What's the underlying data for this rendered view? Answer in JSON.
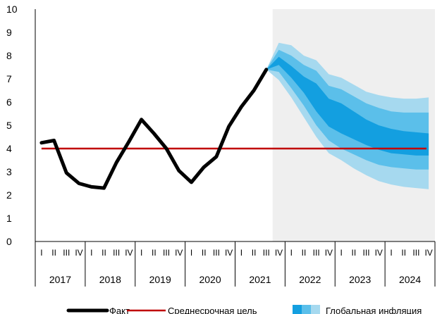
{
  "chart_data": {
    "type": "line",
    "title": "",
    "ylabel": "",
    "ylim": [
      0,
      10
    ],
    "yticks": [
      0,
      1,
      2,
      3,
      4,
      5,
      6,
      7,
      8,
      9,
      10
    ],
    "grid": false,
    "years": [
      "2017",
      "2018",
      "2019",
      "2020",
      "2021",
      "2022",
      "2023",
      "2024"
    ],
    "quarters": [
      "I",
      "II",
      "III",
      "IV"
    ],
    "forecast_shaded_from": "2021 IV",
    "series": [
      {
        "name": "Факт",
        "color": "#000000",
        "x": [
          "2017 I",
          "2017 II",
          "2017 III",
          "2017 IV",
          "2018 I",
          "2018 II",
          "2018 III",
          "2018 IV",
          "2019 I",
          "2019 II",
          "2019 III",
          "2019 IV",
          "2020 I",
          "2020 II",
          "2020 III",
          "2020 IV",
          "2021 I",
          "2021 II",
          "2021 III",
          "2021 IV"
        ],
        "values": [
          4.25,
          4.35,
          2.95,
          2.5,
          2.35,
          2.3,
          3.4,
          4.3,
          5.25,
          4.65,
          4.0,
          3.05,
          2.55,
          3.2,
          3.65,
          4.95,
          5.8,
          6.5,
          7.4,
          null
        ]
      },
      {
        "name": "Среднесрочная цель",
        "color": "#c00000",
        "x": [
          "2017 I",
          "2024 IV"
        ],
        "values": [
          4.0,
          4.0
        ]
      }
    ],
    "fan": {
      "name": "Глобальная инфляция",
      "colors": [
        "#a6d9ef",
        "#5bbfea",
        "#139fe0"
      ],
      "x": [
        "2021 III",
        "2021 IV",
        "2022 I",
        "2022 II",
        "2022 III",
        "2022 IV",
        "2023 I",
        "2023 II",
        "2023 III",
        "2023 IV",
        "2024 I",
        "2024 II",
        "2024 III",
        "2024 IV"
      ],
      "outer_upper": [
        7.4,
        8.55,
        8.45,
        8.0,
        7.8,
        7.2,
        7.05,
        6.75,
        6.45,
        6.3,
        6.2,
        6.15,
        6.15,
        6.2
      ],
      "middle_upper": [
        7.4,
        8.25,
        8.0,
        7.6,
        7.35,
        6.7,
        6.55,
        6.25,
        5.95,
        5.75,
        5.6,
        5.55,
        5.55,
        5.55
      ],
      "inner_upper": [
        7.4,
        7.95,
        7.55,
        7.1,
        6.8,
        6.15,
        5.95,
        5.6,
        5.25,
        5.0,
        4.85,
        4.75,
        4.7,
        4.65
      ],
      "inner_lower": [
        7.4,
        7.6,
        7.05,
        6.4,
        5.6,
        4.95,
        4.65,
        4.4,
        4.15,
        3.95,
        3.8,
        3.75,
        3.7,
        3.7
      ],
      "middle_lower": [
        7.4,
        7.3,
        6.6,
        5.85,
        5.0,
        4.35,
        4.0,
        3.75,
        3.5,
        3.3,
        3.2,
        3.15,
        3.1,
        3.1
      ],
      "outer_lower": [
        7.4,
        6.95,
        6.2,
        5.35,
        4.5,
        3.8,
        3.5,
        3.15,
        2.85,
        2.6,
        2.45,
        2.35,
        2.3,
        2.25
      ]
    },
    "legend": {
      "placement": "bottom",
      "items": [
        "Факт",
        "Среднесрочная цель",
        "Глобальная инфляция"
      ]
    },
    "colors": {
      "forecast_shade": "#efefef",
      "axis": "#000000"
    }
  }
}
